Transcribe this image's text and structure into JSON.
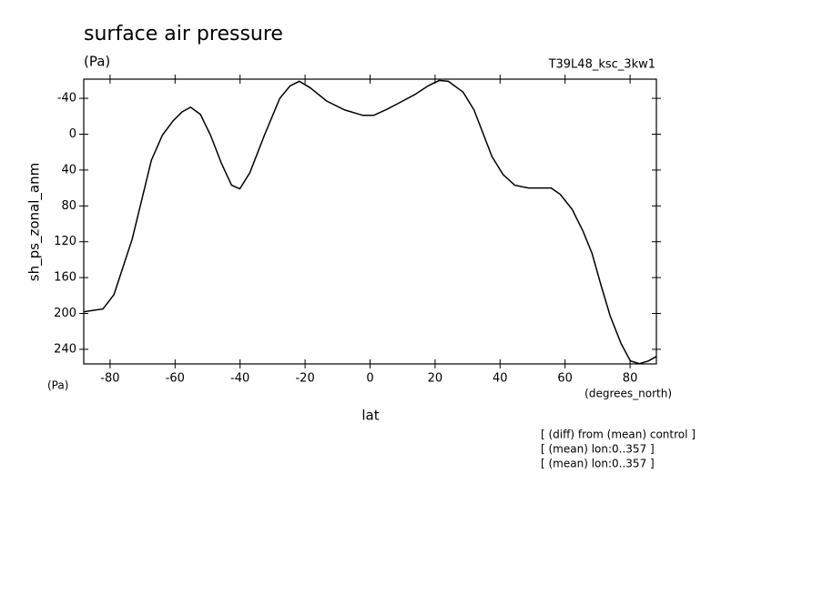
{
  "chart_data": {
    "type": "line",
    "title": "surface air pressure",
    "subtitle": "(Pa)",
    "run_label": "T39L48_ksc_3kw1",
    "y_label": "sh_ps_zonal_anm",
    "y_units": "(Pa)",
    "x_label": "lat",
    "x_units": "(degrees_north)",
    "notes": [
      "[ (diff) from (mean) control ]",
      "[ (mean) lon:0..357 ]",
      "[ (mean) lon:0..357 ]"
    ],
    "x": [
      -88,
      -82.2,
      -78.8,
      -73.2,
      -67.3,
      -63.9,
      -60.6,
      -57.8,
      -55.2,
      -52.2,
      -49.1,
      -45.7,
      -42.6,
      -40.1,
      -37,
      -32.5,
      -27.8,
      -24.6,
      -21.8,
      -18.5,
      -13.4,
      -7.8,
      -2.2,
      1.1,
      5.3,
      9,
      13.7,
      17.9,
      21.3,
      24.1,
      28.6,
      32,
      37.5,
      40.9,
      44.5,
      48.7,
      55.7,
      58.5,
      62.2,
      65.5,
      68.3,
      71.1,
      73.9,
      77.3,
      80.1,
      82.9,
      85.7,
      88.1
    ],
    "series": [
      {
        "color": "#000000",
        "values": [
          198,
          195,
          179,
          117,
          29,
          1,
          -15,
          -25,
          -30,
          -22,
          1,
          33,
          57,
          61,
          43,
          1,
          -40,
          -54,
          -59,
          -52,
          -37,
          -27,
          -21,
          -21,
          -28,
          -35,
          -44,
          -54,
          -60,
          -59,
          -47,
          -27,
          25,
          45,
          57,
          60,
          60,
          67,
          84,
          108,
          133,
          169,
          203,
          234,
          253,
          256,
          253,
          248
        ]
      }
    ],
    "xlim": [
      -88.1,
      88.1
    ],
    "xticks": [
      -80,
      -60,
      -40,
      -20,
      0,
      20,
      40,
      60,
      80
    ],
    "ylim": [
      256.3,
      -61.4
    ],
    "yticks": [
      -40,
      0,
      40,
      80,
      120,
      160,
      200,
      240
    ]
  }
}
